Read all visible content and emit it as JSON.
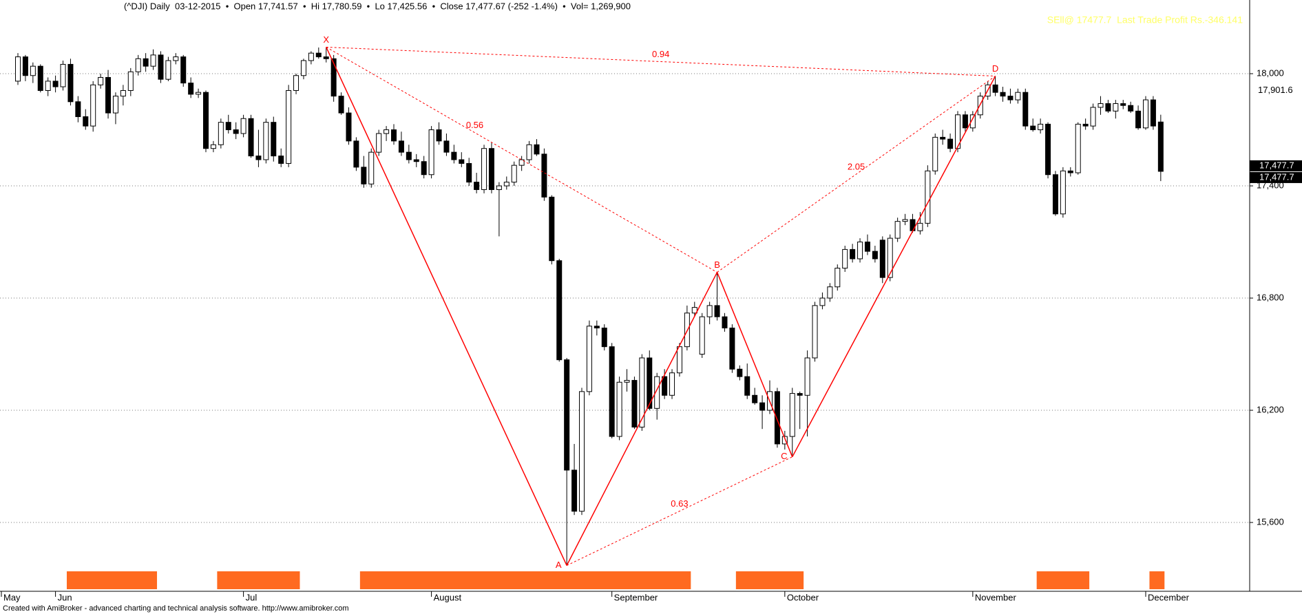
{
  "chart_data": {
    "type": "candlestick",
    "title": "(^DJI) Daily  03-12-2015  •  Open 17,741.57  •  Hi 17,780.59  •  Lo 17,425.56  •  Close 17,477.67 (-252 -1.4%)  •  Vol= 1,269,900",
    "annotation": "SEll@ 17477.7  Last Trade Profit Rs.-346.141",
    "footer": "Created with AmiBroker - advanced charting and technical analysis software. http://www.amibroker.com",
    "open": [
      17960,
      18090,
      17990,
      18040,
      17910,
      17960,
      17930,
      18050,
      17850,
      17770,
      17720,
      17940,
      17980,
      17790,
      17880,
      17910,
      18010,
      18080,
      18040,
      18100,
      17970,
      18070,
      18090,
      17950,
      17890,
      17900,
      17600,
      17620,
      17740,
      17700,
      17680,
      17760,
      17560,
      17540,
      17740,
      17560,
      17520,
      17910,
      17990,
      18070,
      18110,
      18090,
      18080,
      17880,
      17790,
      17640,
      17500,
      17410,
      17580,
      17680,
      17700,
      17640,
      17580,
      17540,
      17530,
      17460,
      17700,
      17640,
      17580,
      17540,
      17520,
      17420,
      17380,
      17600,
      17380,
      17400,
      17420,
      17510,
      17540,
      17620,
      17570,
      17340,
      17000,
      16470,
      15880,
      15660,
      16300,
      16650,
      16640,
      16540,
      16060,
      16350,
      16360,
      16110,
      16480,
      16210,
      16380,
      16280,
      16400,
      16540,
      16720,
      16500,
      16700,
      16760,
      16700,
      16640,
      16420,
      16380,
      16280,
      16240,
      16200,
      16300,
      16020,
      16060,
      16290,
      16280,
      16480,
      16760,
      16800,
      16860,
      16960,
      17060,
      17010,
      17100,
      17050,
      17110,
      16910,
      17120,
      17210,
      17220,
      17160,
      17200,
      17480,
      17660,
      17650,
      17600,
      17780,
      17710,
      17780,
      17880,
      17940,
      17900,
      17880,
      17860,
      17900,
      17720,
      17700,
      17730,
      17460,
      17250,
      17480,
      17470,
      17730,
      17720,
      17820,
      17840,
      17800,
      17840,
      17830,
      17800,
      17710,
      17860,
      17741.57
    ],
    "high": [
      18110,
      18100,
      18060,
      18050,
      17980,
      17990,
      18070,
      18080,
      17880,
      17810,
      17960,
      18000,
      18020,
      17900,
      17940,
      18030,
      18100,
      18110,
      18130,
      18120,
      18090,
      18110,
      18100,
      17980,
      17920,
      17910,
      17640,
      17760,
      17780,
      17740,
      17780,
      17780,
      17700,
      17760,
      17770,
      17600,
      17940,
      18000,
      18080,
      18120,
      18140,
      18142,
      18100,
      17900,
      17820,
      17660,
      17560,
      17600,
      17700,
      17720,
      17730,
      17690,
      17620,
      17570,
      17560,
      17720,
      17740,
      17680,
      17620,
      17580,
      17550,
      17470,
      17620,
      17630,
      17420,
      17450,
      17530,
      17560,
      17640,
      17650,
      17600,
      17350,
      17010,
      16480,
      16020,
      16320,
      16680,
      16680,
      16660,
      16560,
      16380,
      16420,
      16380,
      16500,
      16520,
      16400,
      16420,
      16420,
      16560,
      16760,
      16780,
      16720,
      16780,
      16938,
      16720,
      16660,
      16440,
      16450,
      16320,
      16280,
      16360,
      16320,
      16090,
      16320,
      16300,
      16520,
      16780,
      16830,
      16880,
      16980,
      17080,
      17090,
      17120,
      17140,
      17080,
      17130,
      17140,
      17230,
      17250,
      17250,
      17260,
      17510,
      17680,
      17700,
      17680,
      17800,
      17800,
      17800,
      17900,
      17960,
      17987,
      17930,
      17920,
      17920,
      17920,
      17760,
      17760,
      17740,
      17480,
      17500,
      17500,
      17740,
      17760,
      17840,
      17880,
      17860,
      17860,
      17860,
      17850,
      17830,
      17880,
      17880,
      17780.59
    ],
    "low": [
      17940,
      17960,
      17950,
      17900,
      17880,
      17900,
      17910,
      17830,
      17740,
      17700,
      17690,
      17920,
      17760,
      17730,
      17830,
      17880,
      17990,
      18010,
      18020,
      17950,
      17960,
      18050,
      17930,
      17870,
      17870,
      17580,
      17580,
      17600,
      17680,
      17650,
      17660,
      17550,
      17500,
      17520,
      17530,
      17500,
      17500,
      17890,
      17970,
      18050,
      18080,
      18060,
      17850,
      17780,
      17620,
      17480,
      17390,
      17390,
      17560,
      17640,
      17620,
      17560,
      17520,
      17500,
      17440,
      17440,
      17620,
      17560,
      17520,
      17500,
      17400,
      17360,
      17360,
      17360,
      17130,
      17380,
      17400,
      17480,
      17520,
      17560,
      17320,
      16980,
      16460,
      15370,
      15640,
      15640,
      16280,
      16600,
      16520,
      16050,
      16040,
      16300,
      16100,
      16090,
      16200,
      16150,
      16260,
      16260,
      16380,
      16520,
      16700,
      16480,
      16660,
      16680,
      16620,
      16400,
      16360,
      16260,
      16230,
      16100,
      16180,
      16000,
      15990,
      15951,
      16100,
      16060,
      16460,
      16740,
      16780,
      16840,
      16940,
      16990,
      16990,
      17030,
      16990,
      16880,
      16890,
      17100,
      17190,
      17150,
      17140,
      17180,
      17460,
      17620,
      17580,
      17580,
      17690,
      17690,
      17760,
      17860,
      17880,
      17850,
      17840,
      17840,
      17700,
      17690,
      17680,
      17440,
      17240,
      17230,
      17450,
      17460,
      17700,
      17700,
      17780,
      17790,
      17760,
      17810,
      17790,
      17700,
      17700,
      17700,
      17425.56
    ],
    "close": [
      18090,
      17990,
      18040,
      17910,
      17960,
      17930,
      18050,
      17850,
      17770,
      17720,
      17940,
      17980,
      17790,
      17880,
      17910,
      18010,
      18080,
      18040,
      18100,
      17970,
      18070,
      18090,
      17950,
      17890,
      17900,
      17600,
      17620,
      17740,
      17700,
      17680,
      17760,
      17560,
      17540,
      17740,
      17560,
      17520,
      17910,
      17990,
      18070,
      18110,
      18090,
      18080,
      17880,
      17790,
      17640,
      17500,
      17410,
      17580,
      17680,
      17700,
      17640,
      17580,
      17540,
      17530,
      17460,
      17700,
      17640,
      17580,
      17540,
      17520,
      17420,
      17380,
      17600,
      17380,
      17400,
      17420,
      17510,
      17540,
      17620,
      17570,
      17340,
      17000,
      16470,
      15880,
      15660,
      16300,
      16650,
      16640,
      16540,
      16060,
      16350,
      16360,
      16110,
      16480,
      16210,
      16380,
      16280,
      16400,
      16540,
      16720,
      16750,
      16700,
      16760,
      16700,
      16640,
      16420,
      16380,
      16280,
      16240,
      16200,
      16300,
      16020,
      16060,
      16290,
      16280,
      16480,
      16760,
      16800,
      16860,
      16960,
      17060,
      17010,
      17100,
      17050,
      17010,
      16910,
      17120,
      17210,
      17220,
      17160,
      17200,
      17480,
      17660,
      17650,
      17600,
      17780,
      17710,
      17780,
      17880,
      17940,
      17900,
      17880,
      17860,
      17900,
      17720,
      17700,
      17730,
      17460,
      17250,
      17480,
      17470,
      17730,
      17720,
      17820,
      17840,
      17800,
      17840,
      17830,
      17800,
      17710,
      17860,
      17720,
      17477.67
    ],
    "up_color": "#ffffff",
    "down_color": "#000000",
    "xticks": [
      {
        "value": 0,
        "label": "May"
      },
      {
        "value": 5,
        "label": "Jun"
      },
      {
        "value": 30,
        "label": "Jul"
      },
      {
        "value": 55,
        "label": "August"
      },
      {
        "value": 79,
        "label": "September"
      },
      {
        "value": 102,
        "label": "October"
      },
      {
        "value": 127,
        "label": "November"
      },
      {
        "value": 150,
        "label": "December"
      }
    ],
    "ylim": [
      15232,
      18394
    ],
    "yticks": [
      {
        "value": 15600,
        "label": "15,600"
      },
      {
        "value": 16200,
        "label": "16,200"
      },
      {
        "value": 16800,
        "label": "16,800"
      },
      {
        "value": 17400,
        "label": "17,400"
      },
      {
        "value": 18000,
        "label": "18,000"
      }
    ],
    "grid": true,
    "price_marker": {
      "value": 17901.6,
      "label": "17,901.6"
    },
    "last_price": {
      "value": 17477.7,
      "label": "17,477.7"
    },
    "pattern": {
      "color": "#ff0000",
      "points": [
        {
          "label": "X",
          "index": 41,
          "value": 18142
        },
        {
          "label": "A",
          "index": 73,
          "value": 15370
        },
        {
          "label": "B",
          "index": 93,
          "value": 16938
        },
        {
          "label": "C",
          "index": 103,
          "value": 15951
        },
        {
          "label": "D",
          "index": 130,
          "value": 17987
        }
      ],
      "ratios": [
        0.56,
        0.63,
        2.05,
        0.94
      ]
    },
    "zones": {
      "color": "#ff6a20",
      "ranges": [
        [
          7,
          18
        ],
        [
          27,
          37
        ],
        [
          46,
          89
        ],
        [
          96,
          104
        ],
        [
          136,
          142
        ],
        [
          151,
          152
        ]
      ]
    }
  }
}
